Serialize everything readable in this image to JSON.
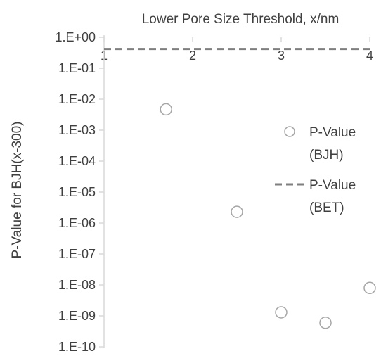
{
  "chart_data": {
    "type": "scatter",
    "title": "",
    "xlabel": "Lower Pore Size Threshold, x/nm",
    "ylabel": "P-Value for BJH(x-300)",
    "xlim": [
      1,
      4
    ],
    "ylim": [
      1e-10,
      1
    ],
    "y_scale": "log",
    "x_axis_position": "top",
    "grid": false,
    "legend_position": "right",
    "x_ticks": [
      "1",
      "2",
      "3",
      "4"
    ],
    "y_ticks": [
      "1.E+00",
      "1.E-01",
      "1.E-02",
      "1.E-03",
      "1.E-04",
      "1.E-05",
      "1.E-06",
      "1.E-07",
      "1.E-08",
      "1.E-09",
      "1.E-10"
    ],
    "series": [
      {
        "name": "P-Value (BJH)",
        "kind": "marker",
        "marker": "open-circle",
        "color": "#a6a6a6",
        "x": [
          1.7,
          2.5,
          3.0,
          3.5,
          4.0
        ],
        "y": [
          0.0047,
          2.3e-06,
          1.3e-09,
          6e-10,
          8e-09
        ]
      },
      {
        "name": "P-Value (BET)",
        "kind": "line",
        "style": "dashed",
        "color": "#7f7f7f",
        "x": [
          1,
          4
        ],
        "y": [
          0.42,
          0.42
        ]
      }
    ],
    "legend": [
      {
        "line1": "P-Value",
        "line2": "(BJH)"
      },
      {
        "line1": "P-Value",
        "line2": "(BET)"
      }
    ]
  }
}
